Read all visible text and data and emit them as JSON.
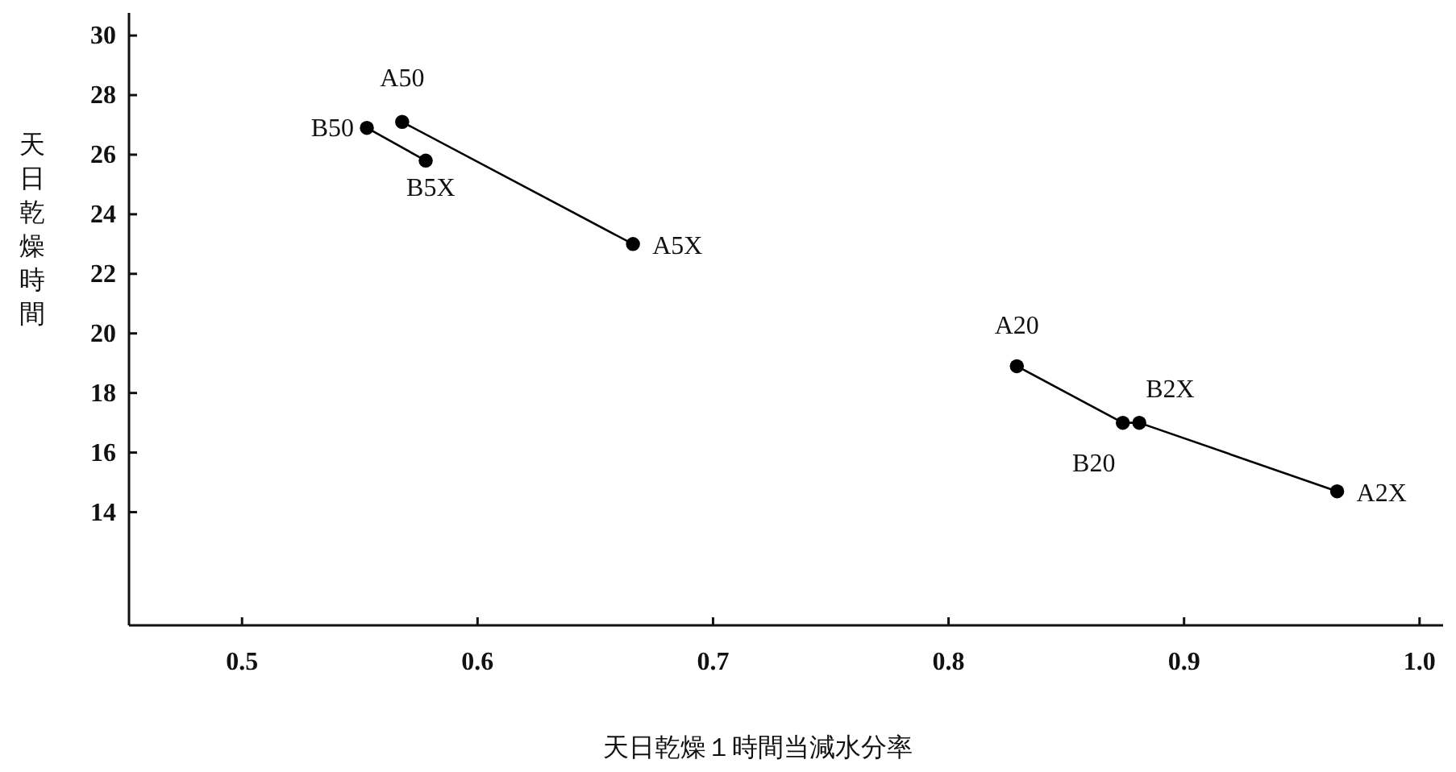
{
  "chart_data": {
    "type": "line",
    "xlabel": "天日乾燥１時間当減水分率",
    "ylabel": "天日乾燥時間",
    "xlim": [
      0.452,
      1.01
    ],
    "ylim": [
      10.2,
      30.76
    ],
    "xticks": [
      0.5,
      0.6,
      0.7,
      0.8,
      0.9,
      {
        "value": 1.0,
        "label": "1.0"
      }
    ],
    "yticks": [
      14,
      16,
      18,
      20,
      22,
      24,
      26,
      28,
      30
    ],
    "marker": "circle",
    "line_style": "solid",
    "series": [
      {
        "color": "#000000",
        "x": [
          0.568,
          0.666
        ],
        "values": [
          27.1,
          23.0
        ]
      },
      {
        "color": "#000000",
        "x": [
          0.553,
          0.578
        ],
        "values": [
          26.9,
          25.8
        ]
      },
      {
        "color": "#000000",
        "x": [
          0.829,
          0.874,
          0.881,
          0.965
        ],
        "values": [
          18.9,
          17.0,
          17.0,
          14.7
        ]
      }
    ],
    "annotations": [
      {
        "text": "A50",
        "x": 0.568,
        "y": 27.1
      },
      {
        "text": "A5X",
        "x": 0.666,
        "y": 23.0
      },
      {
        "text": "B50",
        "x": 0.553,
        "y": 26.9
      },
      {
        "text": "B5X",
        "x": 0.578,
        "y": 25.8
      },
      {
        "text": "A20",
        "x": 0.829,
        "y": 18.9
      },
      {
        "text": "B20",
        "x": 0.874,
        "y": 17.0
      },
      {
        "text": "B2X",
        "x": 0.881,
        "y": 17.0
      },
      {
        "text": "A2X",
        "x": 0.965,
        "y": 14.7
      }
    ]
  }
}
